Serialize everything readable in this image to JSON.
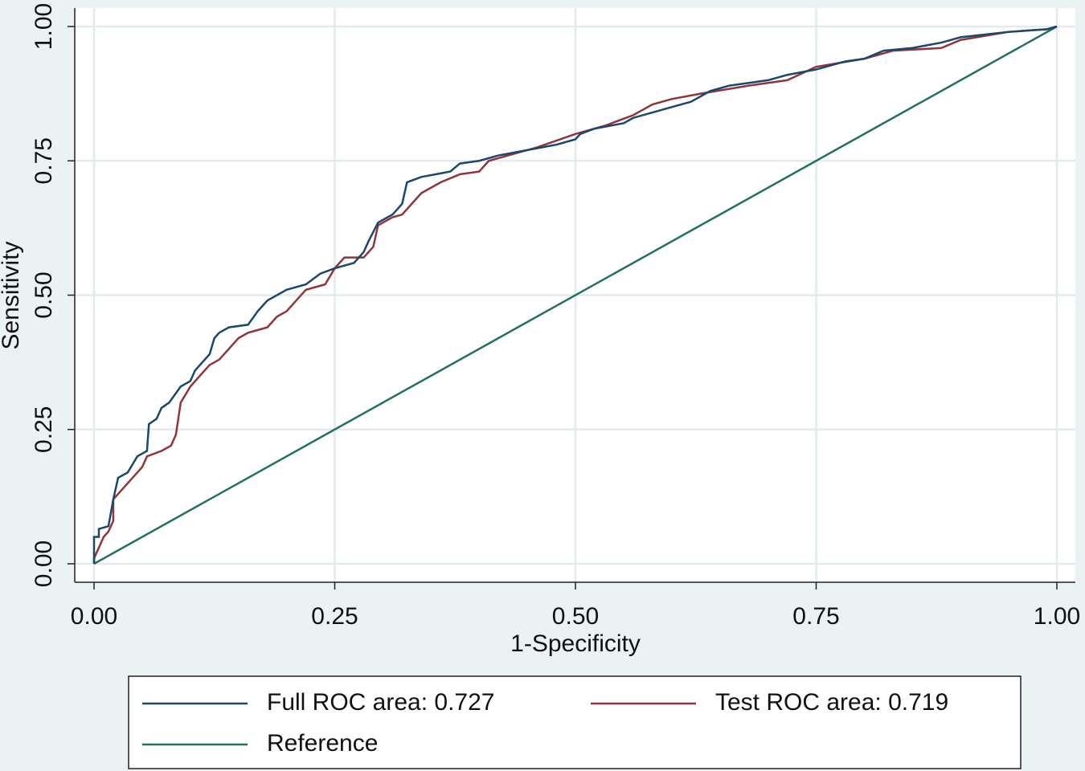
{
  "chart_data": {
    "type": "line",
    "xlabel": "1-Specificity",
    "ylabel": "Sensitivity",
    "xlim": [
      0,
      1
    ],
    "ylim": [
      0,
      1
    ],
    "xticks": [
      {
        "value": 0,
        "label": "0.00"
      },
      {
        "value": 0.25,
        "label": "0.25"
      },
      {
        "value": 0.5,
        "label": "0.50"
      },
      {
        "value": 0.75,
        "label": "0.75"
      },
      {
        "value": 1,
        "label": "1.00"
      }
    ],
    "yticks": [
      {
        "value": 0,
        "label": "0.00"
      },
      {
        "value": 0.25,
        "label": "0.25"
      },
      {
        "value": 0.5,
        "label": "0.50"
      },
      {
        "value": 0.75,
        "label": "0.75"
      },
      {
        "value": 1,
        "label": "1.00"
      }
    ],
    "grid": true,
    "legend": "bottom",
    "series": [
      {
        "name": "Full ROC area: 0.727",
        "color": "#1a476f",
        "x": [
          0,
          0,
          0.005,
          0.005,
          0.015,
          0.02,
          0.025,
          0.035,
          0.04,
          0.045,
          0.055,
          0.057,
          0.065,
          0.07,
          0.078,
          0.09,
          0.1,
          0.105,
          0.12,
          0.125,
          0.13,
          0.14,
          0.16,
          0.17,
          0.175,
          0.18,
          0.19,
          0.2,
          0.22,
          0.235,
          0.25,
          0.27,
          0.28,
          0.285,
          0.295,
          0.31,
          0.32,
          0.325,
          0.34,
          0.355,
          0.37,
          0.38,
          0.4,
          0.42,
          0.45,
          0.48,
          0.5,
          0.505,
          0.52,
          0.55,
          0.56,
          0.58,
          0.6,
          0.62,
          0.64,
          0.66,
          0.7,
          0.72,
          0.75,
          0.78,
          0.8,
          0.82,
          0.85,
          0.88,
          0.9,
          0.95,
          0.99,
          1
        ],
        "values": [
          0,
          0.05,
          0.05,
          0.065,
          0.07,
          0.12,
          0.16,
          0.17,
          0.185,
          0.2,
          0.21,
          0.26,
          0.27,
          0.29,
          0.3,
          0.33,
          0.34,
          0.36,
          0.39,
          0.42,
          0.43,
          0.44,
          0.445,
          0.47,
          0.48,
          0.49,
          0.5,
          0.51,
          0.52,
          0.54,
          0.55,
          0.56,
          0.58,
          0.6,
          0.635,
          0.65,
          0.67,
          0.71,
          0.72,
          0.725,
          0.73,
          0.745,
          0.75,
          0.76,
          0.77,
          0.78,
          0.79,
          0.8,
          0.81,
          0.82,
          0.83,
          0.84,
          0.85,
          0.86,
          0.88,
          0.89,
          0.9,
          0.91,
          0.92,
          0.935,
          0.94,
          0.955,
          0.96,
          0.97,
          0.98,
          0.99,
          0.995,
          1
        ]
      },
      {
        "name": "Test ROC area: 0.719",
        "color": "#90353b",
        "x": [
          0,
          0,
          0.005,
          0.01,
          0.015,
          0.02,
          0.02,
          0.03,
          0.04,
          0.05,
          0.055,
          0.07,
          0.08,
          0.085,
          0.09,
          0.1,
          0.11,
          0.12,
          0.13,
          0.14,
          0.15,
          0.16,
          0.18,
          0.19,
          0.2,
          0.21,
          0.22,
          0.24,
          0.25,
          0.26,
          0.28,
          0.29,
          0.295,
          0.31,
          0.32,
          0.33,
          0.34,
          0.36,
          0.38,
          0.4,
          0.41,
          0.43,
          0.46,
          0.5,
          0.53,
          0.56,
          0.58,
          0.6,
          0.63,
          0.68,
          0.72,
          0.75,
          0.8,
          0.83,
          0.88,
          0.9,
          0.95,
          0.99,
          1
        ],
        "values": [
          0,
          0.01,
          0.03,
          0.05,
          0.06,
          0.08,
          0.12,
          0.14,
          0.16,
          0.18,
          0.2,
          0.21,
          0.22,
          0.24,
          0.3,
          0.33,
          0.35,
          0.37,
          0.38,
          0.4,
          0.42,
          0.43,
          0.44,
          0.46,
          0.47,
          0.49,
          0.51,
          0.52,
          0.55,
          0.57,
          0.57,
          0.59,
          0.63,
          0.645,
          0.65,
          0.67,
          0.69,
          0.71,
          0.725,
          0.73,
          0.75,
          0.76,
          0.775,
          0.8,
          0.815,
          0.835,
          0.855,
          0.865,
          0.875,
          0.89,
          0.9,
          0.925,
          0.94,
          0.955,
          0.96,
          0.975,
          0.99,
          0.995,
          1
        ]
      },
      {
        "name": "Reference",
        "color": "#236f62",
        "x": [
          0,
          1
        ],
        "values": [
          0,
          1
        ]
      }
    ]
  }
}
